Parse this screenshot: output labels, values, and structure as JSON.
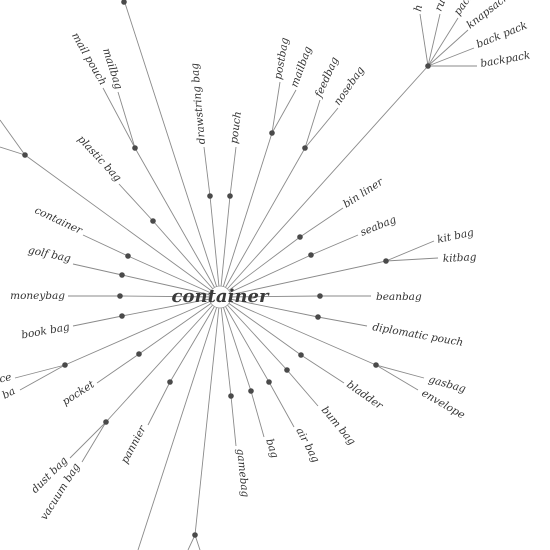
{
  "root": {
    "label": "container"
  },
  "top_level_labels": {
    "bin_liner": "bin liner",
    "seabag": "seabag",
    "beanbag": "beanbag",
    "diplomatic_pouch": "diplomatic pouch",
    "bladder": "bladder",
    "bum_bag": "bum bag",
    "air_bag": "air bag",
    "bag": "bag",
    "gamebag": "gamebag",
    "pannier": "pannier",
    "pocket": "pocket",
    "moneybag": "moneybag",
    "golf_bag": "golf bag",
    "container": "container",
    "plastic_bag": "plastic bag",
    "drawstring_bag": "drawstring bag",
    "pouch": "pouch"
  },
  "group_labels": {
    "postbag": "postbag",
    "mailbag_top": "mailbag",
    "feedbag": "feedbag",
    "nosebag": "nosebag",
    "kit_bag": "kit bag",
    "kitbag": "kitbag",
    "gasbag": "gasbag",
    "envelope": "envelope",
    "dust_bag": "dust bag",
    "vacuum_bag": "vacuum bag",
    "book_bag": "book bag",
    "mail_pouch": "mail pouch",
    "mailbag_left": "mailbag",
    "ice_cut": "ice",
    "ice_bag_cut": "ice ba",
    "knapsack": "knapsack",
    "back_pack": "back pack",
    "backpack": "backpack",
    "pack_cut": "pack",
    "ru_cut": "ru",
    "ha_cut": "h"
  },
  "colors": {
    "edge": "#8a8a8a",
    "dot": "#4a4a4a",
    "text": "#333333"
  }
}
